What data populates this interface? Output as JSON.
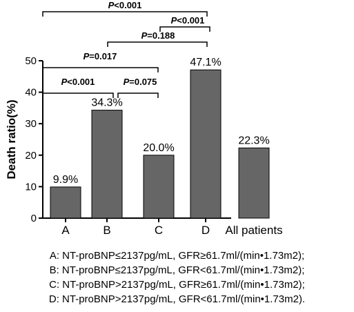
{
  "chart_data": {
    "type": "bar",
    "categories": [
      "A",
      "B",
      "C",
      "D",
      "All patients"
    ],
    "values": [
      9.9,
      34.3,
      20.0,
      47.1,
      22.3
    ],
    "data_labels": [
      "9.9%",
      "34.3%",
      "20.0%",
      "47.1%",
      "22.3%"
    ],
    "title": "",
    "xlabel": "",
    "ylabel": "Death ratio(%)",
    "ylim": [
      0,
      50
    ],
    "yticks": [
      "0",
      "10",
      "20",
      "30",
      "40",
      "50"
    ],
    "bar_color": "#666666",
    "grid": false,
    "comparisons": [
      {
        "a": "A",
        "b": "D",
        "p_label": "P",
        "p_text": "<0.001"
      },
      {
        "a": "C",
        "b": "D",
        "p_label": "P",
        "p_text": "<0.001"
      },
      {
        "a": "B",
        "b": "D",
        "p_label": "P",
        "p_text": "=0.188"
      },
      {
        "a": "A",
        "b": "C",
        "p_label": "P",
        "p_text": "=0.017"
      },
      {
        "a": "A",
        "b": "B",
        "p_label": "P",
        "p_text": "<0.001"
      },
      {
        "a": "B",
        "b": "C",
        "p_label": "P",
        "p_text": "=0.075"
      }
    ]
  },
  "footnotes": [
    "A: NT-proBNP≤2137pg/mL, GFR≥61.7ml/(min•1.73m2);",
    "B: NT-proBNP≤2137pg/mL, GFR<61.7ml/(min•1.73m2);",
    "C: NT-proBNP>2137pg/mL, GFR≥61.7ml/(min•1.73m2);",
    "D: NT-proBNP>2137pg/mL, GFR<61.7ml/(min•1.73m2)."
  ]
}
